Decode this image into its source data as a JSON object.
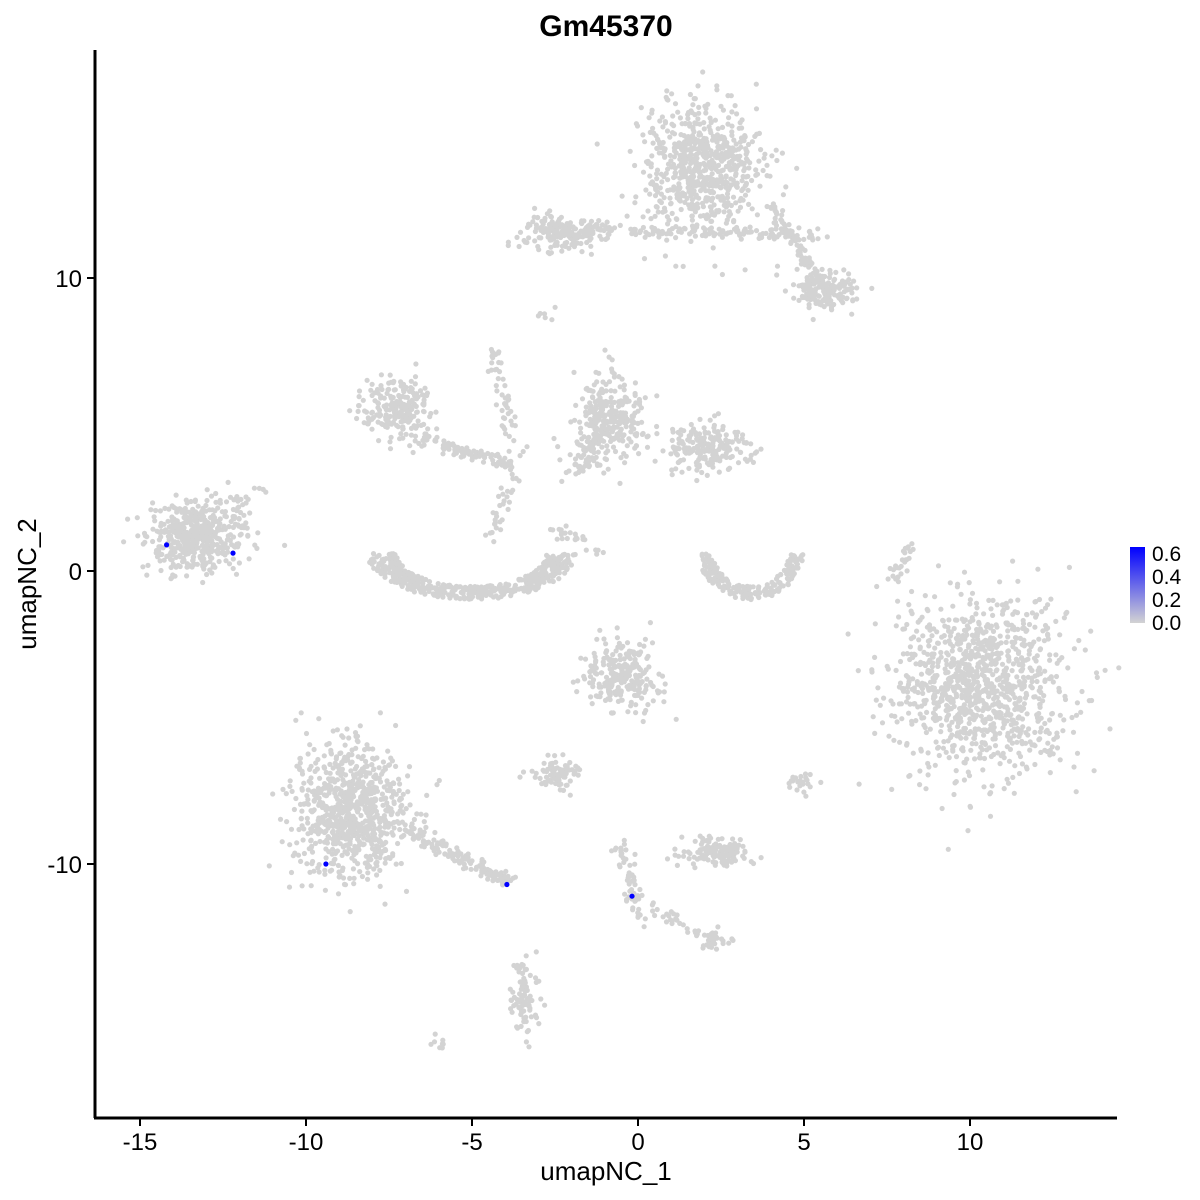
{
  "chart_data": {
    "type": "scatter",
    "title": "Gm45370",
    "xlabel": "umapNC_1",
    "ylabel": "umapNC_2",
    "xlim": [
      -16.35,
      14.4
    ],
    "ylim": [
      -18.7,
      17.8
    ],
    "xticks": [
      -15,
      -10,
      -5,
      0,
      5,
      10
    ],
    "yticks": [
      -10,
      0,
      10
    ],
    "grid": false,
    "colors": {
      "low": "#d3d3d3",
      "high": "#0000ff"
    },
    "legend": {
      "position": "right",
      "type": "colorbar",
      "ticks": [
        "0.0",
        "0.2",
        "0.4",
        "0.6"
      ],
      "range": [
        0,
        0.65
      ]
    },
    "expressing_points": [
      {
        "x": -14.2,
        "y": 0.89,
        "value": 0.65
      },
      {
        "x": -12.2,
        "y": 0.61,
        "value": 0.65
      },
      {
        "x": -9.4,
        "y": -10.0,
        "value": 0.65
      },
      {
        "x": -3.95,
        "y": -10.7,
        "value": 0.65
      },
      {
        "x": -0.18,
        "y": -11.1,
        "value": 0.65
      }
    ],
    "background_clusters": [
      {
        "cx": 1.9,
        "cy": 13.8,
        "sx": 0.9,
        "sy": 1.1,
        "n": 700,
        "value": 0
      },
      {
        "cx": -2.3,
        "cy": 11.5,
        "sx": 0.6,
        "sy": 0.35,
        "n": 150,
        "value": 0
      },
      {
        "cx": 5.6,
        "cy": 9.6,
        "sx": 0.5,
        "sy": 0.35,
        "n": 160,
        "value": 0
      },
      {
        "cx": -7.2,
        "cy": 5.5,
        "sx": 0.55,
        "sy": 0.5,
        "n": 220,
        "value": 0
      },
      {
        "cx": -0.9,
        "cy": 5.2,
        "sx": 0.55,
        "sy": 0.7,
        "n": 300,
        "value": 0
      },
      {
        "cx": 2.1,
        "cy": 4.2,
        "sx": 0.6,
        "sy": 0.4,
        "n": 200,
        "value": 0
      },
      {
        "cx": -13.3,
        "cy": 1.2,
        "sx": 0.75,
        "sy": 0.55,
        "n": 500,
        "value": 0
      },
      {
        "cx": 10.3,
        "cy": -3.9,
        "sx": 1.3,
        "sy": 1.5,
        "n": 1100,
        "value": 0
      },
      {
        "cx": -0.5,
        "cy": -3.6,
        "sx": 0.55,
        "sy": 0.6,
        "n": 250,
        "value": 0
      },
      {
        "cx": -8.7,
        "cy": -8.3,
        "sx": 0.85,
        "sy": 1.2,
        "n": 800,
        "value": 0
      },
      {
        "cx": -2.5,
        "cy": -6.9,
        "sx": 0.35,
        "sy": 0.25,
        "n": 80,
        "value": 0
      },
      {
        "cx": 2.3,
        "cy": -9.6,
        "sx": 0.5,
        "sy": 0.25,
        "n": 130,
        "value": 0
      },
      {
        "cx": 2.3,
        "cy": -12.6,
        "sx": 0.2,
        "sy": 0.2,
        "n": 30,
        "value": 0
      },
      {
        "cx": -3.4,
        "cy": -14.5,
        "sx": 0.2,
        "sy": 0.6,
        "n": 90,
        "value": 0
      },
      {
        "cx": 4.9,
        "cy": -7.3,
        "sx": 0.25,
        "sy": 0.2,
        "n": 25,
        "value": 0
      }
    ],
    "background_strands": [
      {
        "from": [
          -3.5,
          11.7
        ],
        "to": [
          5.5,
          11.5
        ],
        "n": 160
      },
      {
        "from": [
          4.0,
          12.5
        ],
        "to": [
          5.8,
          9.2
        ],
        "n": 90
      },
      {
        "from": [
          -6.5,
          4.5
        ],
        "to": [
          -3.8,
          3.6
        ],
        "n": 90
      },
      {
        "from": [
          -4.4,
          7.6
        ],
        "to": [
          -3.6,
          4.0
        ],
        "n": 50
      },
      {
        "from": [
          -2.1,
          3.2
        ],
        "to": [
          -0.8,
          5.0
        ],
        "n": 60
      },
      {
        "from": [
          -3.8,
          3.2
        ],
        "to": [
          -4.4,
          1.0
        ],
        "n": 30
      },
      {
        "from": [
          -2.6,
          1.5
        ],
        "to": [
          -1.2,
          0.7
        ],
        "n": 25
      },
      {
        "from": [
          -12.4,
          1.9
        ],
        "to": [
          -11.4,
          2.8
        ],
        "n": 20
      },
      {
        "from": [
          -7.0,
          -8.8
        ],
        "to": [
          -3.9,
          -10.6
        ],
        "n": 140
      },
      {
        "from": [
          -0.6,
          -9.2
        ],
        "to": [
          0.1,
          -12.0
        ],
        "n": 60
      },
      {
        "from": [
          0.4,
          -11.5
        ],
        "to": [
          2.4,
          -12.7
        ],
        "n": 30
      },
      {
        "from": [
          8.2,
          0.9
        ],
        "to": [
          7.7,
          -0.3
        ],
        "n": 25
      },
      {
        "from": [
          -6.1,
          -16.3
        ],
        "to": [
          -5.8,
          -16.0
        ],
        "n": 8
      },
      {
        "from": [
          -2.9,
          8.7
        ],
        "to": [
          -2.6,
          8.9
        ],
        "n": 6
      }
    ],
    "background_arcs": [
      {
        "cx": -5.0,
        "cy": 0.6,
        "rx": 3.0,
        "ry": 1.5,
        "n": 450
      },
      {
        "cx": 3.4,
        "cy": 0.6,
        "rx": 1.5,
        "ry": 1.5,
        "n": 200
      }
    ]
  }
}
